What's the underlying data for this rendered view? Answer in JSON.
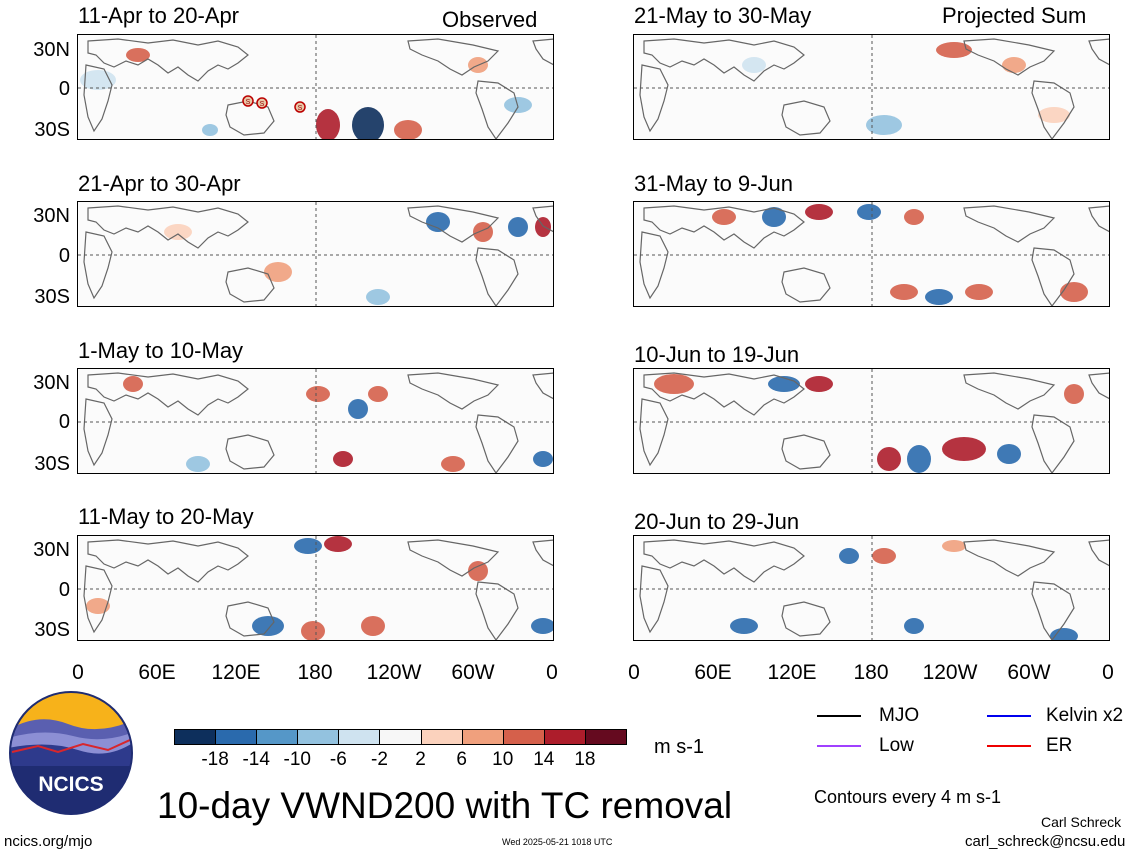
{
  "figure": {
    "main_title": "10-day VWND200 with TC removal",
    "unit_label": "m s-1",
    "contour_note": "Contours every 4 m s-1",
    "left_column_label": "Observed",
    "right_column_label": "Projected Sum",
    "author": "Carl Schreck",
    "email": "carl_schreck@ncsu.edu",
    "site": "ncics.org/mjo",
    "timestamp": "Wed 2025-05-21 1018 UTC",
    "logo_text": "NCICS"
  },
  "panels_left": [
    {
      "title": "11-Apr to 20-Apr"
    },
    {
      "title": "21-Apr to 30-Apr"
    },
    {
      "title": "1-May to 10-May"
    },
    {
      "title": "11-May to 20-May"
    }
  ],
  "panels_right": [
    {
      "title": "21-May to 30-May"
    },
    {
      "title": "31-May to 9-Jun"
    },
    {
      "title": "10-Jun to 19-Jun"
    },
    {
      "title": "20-Jun to 29-Jun"
    }
  ],
  "axes": {
    "y_ticks": [
      "30N",
      "0",
      "30S"
    ],
    "x_ticks": [
      "0",
      "60E",
      "120E",
      "180",
      "120W",
      "60W",
      "0"
    ]
  },
  "colorbar": {
    "ticks": [
      "-18",
      "-14",
      "-10",
      "-6",
      "-2",
      "2",
      "6",
      "10",
      "14",
      "18"
    ],
    "colors": [
      "#0d2f5c",
      "#2a6aad",
      "#5597c8",
      "#93c2df",
      "#cfe3f0",
      "#f7f7f7",
      "#fbd2bd",
      "#f0a07d",
      "#d5604b",
      "#ad1d2b",
      "#650a1f"
    ]
  },
  "legend": {
    "items": [
      {
        "label": "MJO",
        "color": "#000000"
      },
      {
        "label": "Kelvin x2",
        "color": "#0000ee"
      },
      {
        "label": "Low",
        "color": "#a040ff"
      },
      {
        "label": "ER",
        "color": "#ee0000"
      }
    ]
  },
  "storm_markers": [
    "S",
    "S",
    "S"
  ],
  "chart_data": {
    "type": "heatmap",
    "title": "10-day VWND200 with TC removal",
    "variable": "VWND200",
    "units": "m s-1",
    "xlim": [
      "0",
      "0"
    ],
    "ylim": [
      "30S",
      "30N"
    ],
    "x_ticks": [
      "0",
      "60E",
      "120E",
      "180",
      "120W",
      "60W",
      "0"
    ],
    "y_ticks": [
      "30N",
      "0",
      "30S"
    ],
    "color_levels": [
      -18,
      -14,
      -10,
      -6,
      -2,
      2,
      6,
      10,
      14,
      18
    ],
    "contour_interval": 4,
    "panels": [
      "11-Apr to 20-Apr",
      "21-Apr to 30-Apr",
      "1-May to 10-May",
      "11-May to 20-May",
      "21-May to 30-May",
      "31-May to 9-Jun",
      "10-Jun to 19-Jun",
      "20-Jun to 29-Jun"
    ]
  }
}
